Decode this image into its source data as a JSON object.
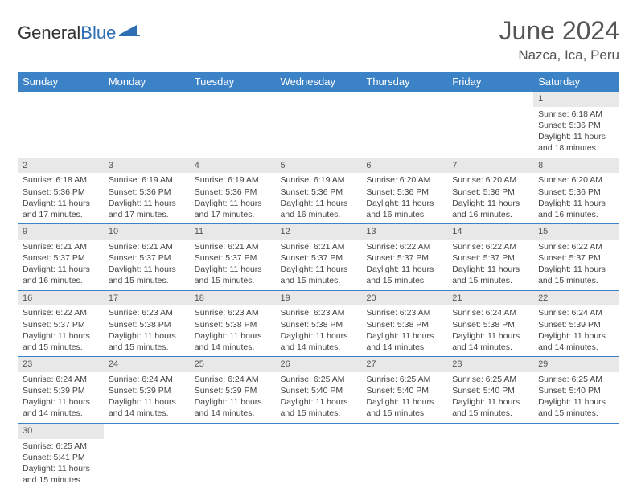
{
  "logo": {
    "part1": "General",
    "part2": "Blue"
  },
  "header": {
    "month_title": "June 2024",
    "location": "Nazca, Ica, Peru"
  },
  "colors": {
    "header_bg": "#3c82c7",
    "header_fg": "#ffffff",
    "daynum_bg": "#e8e8e8",
    "rule": "#3c82c7",
    "text": "#444444",
    "title_color": "#555555"
  },
  "fonts": {
    "title_size_pt": 24,
    "location_size_pt": 13,
    "dayheader_size_pt": 10,
    "cell_size_pt": 8
  },
  "day_headers": [
    "Sunday",
    "Monday",
    "Tuesday",
    "Wednesday",
    "Thursday",
    "Friday",
    "Saturday"
  ],
  "weeks": [
    [
      null,
      null,
      null,
      null,
      null,
      null,
      {
        "n": "1",
        "sr": "Sunrise: 6:18 AM",
        "ss": "Sunset: 5:36 PM",
        "d1": "Daylight: 11 hours",
        "d2": "and 18 minutes."
      }
    ],
    [
      {
        "n": "2",
        "sr": "Sunrise: 6:18 AM",
        "ss": "Sunset: 5:36 PM",
        "d1": "Daylight: 11 hours",
        "d2": "and 17 minutes."
      },
      {
        "n": "3",
        "sr": "Sunrise: 6:19 AM",
        "ss": "Sunset: 5:36 PM",
        "d1": "Daylight: 11 hours",
        "d2": "and 17 minutes."
      },
      {
        "n": "4",
        "sr": "Sunrise: 6:19 AM",
        "ss": "Sunset: 5:36 PM",
        "d1": "Daylight: 11 hours",
        "d2": "and 17 minutes."
      },
      {
        "n": "5",
        "sr": "Sunrise: 6:19 AM",
        "ss": "Sunset: 5:36 PM",
        "d1": "Daylight: 11 hours",
        "d2": "and 16 minutes."
      },
      {
        "n": "6",
        "sr": "Sunrise: 6:20 AM",
        "ss": "Sunset: 5:36 PM",
        "d1": "Daylight: 11 hours",
        "d2": "and 16 minutes."
      },
      {
        "n": "7",
        "sr": "Sunrise: 6:20 AM",
        "ss": "Sunset: 5:36 PM",
        "d1": "Daylight: 11 hours",
        "d2": "and 16 minutes."
      },
      {
        "n": "8",
        "sr": "Sunrise: 6:20 AM",
        "ss": "Sunset: 5:36 PM",
        "d1": "Daylight: 11 hours",
        "d2": "and 16 minutes."
      }
    ],
    [
      {
        "n": "9",
        "sr": "Sunrise: 6:21 AM",
        "ss": "Sunset: 5:37 PM",
        "d1": "Daylight: 11 hours",
        "d2": "and 16 minutes."
      },
      {
        "n": "10",
        "sr": "Sunrise: 6:21 AM",
        "ss": "Sunset: 5:37 PM",
        "d1": "Daylight: 11 hours",
        "d2": "and 15 minutes."
      },
      {
        "n": "11",
        "sr": "Sunrise: 6:21 AM",
        "ss": "Sunset: 5:37 PM",
        "d1": "Daylight: 11 hours",
        "d2": "and 15 minutes."
      },
      {
        "n": "12",
        "sr": "Sunrise: 6:21 AM",
        "ss": "Sunset: 5:37 PM",
        "d1": "Daylight: 11 hours",
        "d2": "and 15 minutes."
      },
      {
        "n": "13",
        "sr": "Sunrise: 6:22 AM",
        "ss": "Sunset: 5:37 PM",
        "d1": "Daylight: 11 hours",
        "d2": "and 15 minutes."
      },
      {
        "n": "14",
        "sr": "Sunrise: 6:22 AM",
        "ss": "Sunset: 5:37 PM",
        "d1": "Daylight: 11 hours",
        "d2": "and 15 minutes."
      },
      {
        "n": "15",
        "sr": "Sunrise: 6:22 AM",
        "ss": "Sunset: 5:37 PM",
        "d1": "Daylight: 11 hours",
        "d2": "and 15 minutes."
      }
    ],
    [
      {
        "n": "16",
        "sr": "Sunrise: 6:22 AM",
        "ss": "Sunset: 5:37 PM",
        "d1": "Daylight: 11 hours",
        "d2": "and 15 minutes."
      },
      {
        "n": "17",
        "sr": "Sunrise: 6:23 AM",
        "ss": "Sunset: 5:38 PM",
        "d1": "Daylight: 11 hours",
        "d2": "and 15 minutes."
      },
      {
        "n": "18",
        "sr": "Sunrise: 6:23 AM",
        "ss": "Sunset: 5:38 PM",
        "d1": "Daylight: 11 hours",
        "d2": "and 14 minutes."
      },
      {
        "n": "19",
        "sr": "Sunrise: 6:23 AM",
        "ss": "Sunset: 5:38 PM",
        "d1": "Daylight: 11 hours",
        "d2": "and 14 minutes."
      },
      {
        "n": "20",
        "sr": "Sunrise: 6:23 AM",
        "ss": "Sunset: 5:38 PM",
        "d1": "Daylight: 11 hours",
        "d2": "and 14 minutes."
      },
      {
        "n": "21",
        "sr": "Sunrise: 6:24 AM",
        "ss": "Sunset: 5:38 PM",
        "d1": "Daylight: 11 hours",
        "d2": "and 14 minutes."
      },
      {
        "n": "22",
        "sr": "Sunrise: 6:24 AM",
        "ss": "Sunset: 5:39 PM",
        "d1": "Daylight: 11 hours",
        "d2": "and 14 minutes."
      }
    ],
    [
      {
        "n": "23",
        "sr": "Sunrise: 6:24 AM",
        "ss": "Sunset: 5:39 PM",
        "d1": "Daylight: 11 hours",
        "d2": "and 14 minutes."
      },
      {
        "n": "24",
        "sr": "Sunrise: 6:24 AM",
        "ss": "Sunset: 5:39 PM",
        "d1": "Daylight: 11 hours",
        "d2": "and 14 minutes."
      },
      {
        "n": "25",
        "sr": "Sunrise: 6:24 AM",
        "ss": "Sunset: 5:39 PM",
        "d1": "Daylight: 11 hours",
        "d2": "and 14 minutes."
      },
      {
        "n": "26",
        "sr": "Sunrise: 6:25 AM",
        "ss": "Sunset: 5:40 PM",
        "d1": "Daylight: 11 hours",
        "d2": "and 15 minutes."
      },
      {
        "n": "27",
        "sr": "Sunrise: 6:25 AM",
        "ss": "Sunset: 5:40 PM",
        "d1": "Daylight: 11 hours",
        "d2": "and 15 minutes."
      },
      {
        "n": "28",
        "sr": "Sunrise: 6:25 AM",
        "ss": "Sunset: 5:40 PM",
        "d1": "Daylight: 11 hours",
        "d2": "and 15 minutes."
      },
      {
        "n": "29",
        "sr": "Sunrise: 6:25 AM",
        "ss": "Sunset: 5:40 PM",
        "d1": "Daylight: 11 hours",
        "d2": "and 15 minutes."
      }
    ],
    [
      {
        "n": "30",
        "sr": "Sunrise: 6:25 AM",
        "ss": "Sunset: 5:41 PM",
        "d1": "Daylight: 11 hours",
        "d2": "and 15 minutes."
      },
      null,
      null,
      null,
      null,
      null,
      null
    ]
  ]
}
